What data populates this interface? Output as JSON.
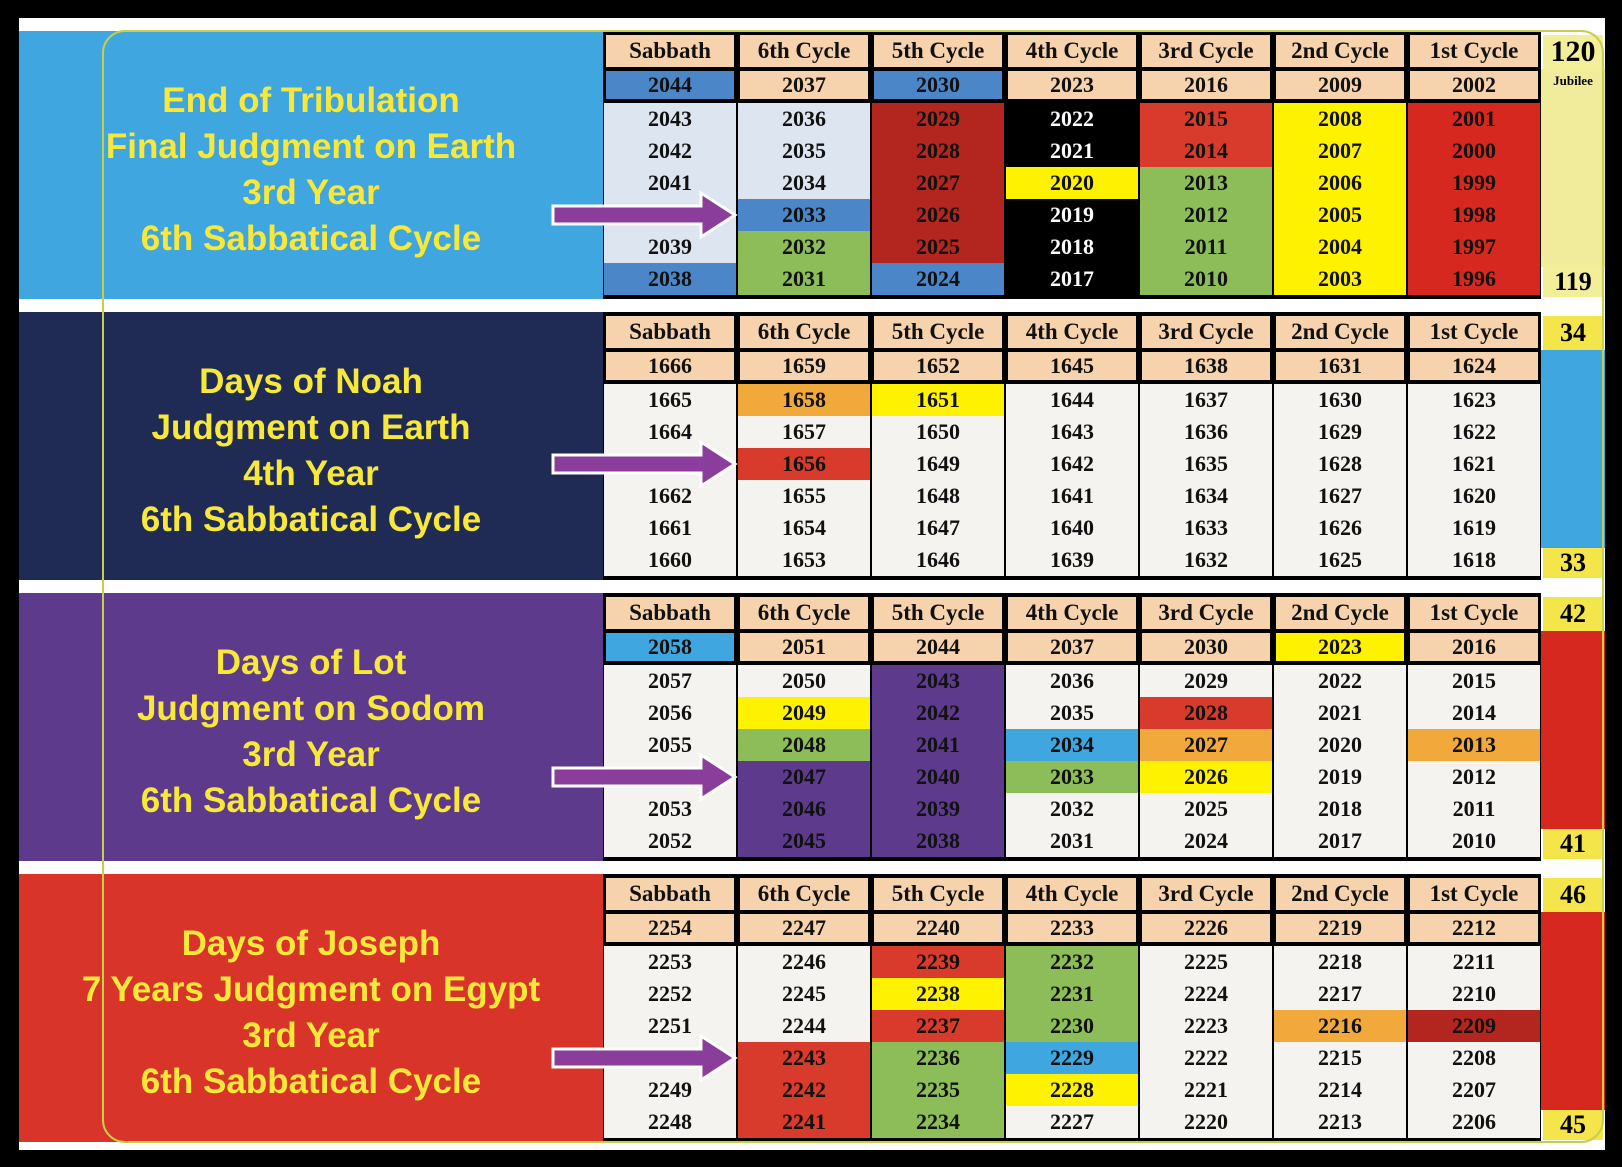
{
  "header_color": "#f7d3ad",
  "year_row_color": "#f7d3ad",
  "cell_color": "#f5f3ef",
  "arrow_color": "#8a3d9a",
  "panels": [
    {
      "background": "#3fa6e0",
      "title_lines": [
        "End of Tribulation",
        "Final Judgment on Earth",
        "3rd Year",
        "6th Sabbatical Cycle"
      ],
      "headers": [
        "Sabbath",
        "6th Cycle",
        "5th Cycle",
        "4th Cycle",
        "3rd Cycle",
        "2nd Cycle",
        "1st Cycle"
      ],
      "rows": [
        [
          2044,
          2037,
          2030,
          2023,
          2016,
          2009,
          2002
        ],
        [
          2043,
          2036,
          2029,
          2022,
          2015,
          2008,
          2001
        ],
        [
          2042,
          2035,
          2028,
          2021,
          2014,
          2007,
          2000
        ],
        [
          2041,
          2034,
          2027,
          2020,
          2013,
          2006,
          1999
        ],
        [
          null,
          2033,
          2026,
          2019,
          2012,
          2005,
          1998
        ],
        [
          2039,
          2032,
          2025,
          2018,
          2011,
          2004,
          1997
        ],
        [
          2038,
          2031,
          2024,
          2017,
          2010,
          2003,
          1996
        ]
      ],
      "colors": [
        [
          "#4a86c8",
          null,
          "#4a86c8",
          null,
          null,
          null,
          null
        ],
        [
          "#dde5f1",
          "#dde5f1",
          "#b3261f",
          "#000000",
          "#d83a2b",
          "#fff200",
          "#d7281f"
        ],
        [
          "#dde5f1",
          "#dde5f1",
          "#b3261f",
          "#000000",
          "#d83a2b",
          "#fff200",
          "#d7281f"
        ],
        [
          "#dde5f1",
          "#dde5f1",
          "#b3261f",
          "#fff200",
          "#8cbd58",
          "#fff200",
          "#d7281f"
        ],
        [
          "#dde5f1",
          "#4a86c8",
          "#b3261f",
          "#000000",
          "#8cbd58",
          "#fff200",
          "#d7281f"
        ],
        [
          "#dde5f1",
          "#8cbd58",
          "#b3261f",
          "#000000",
          "#8cbd58",
          "#fff200",
          "#d7281f"
        ],
        [
          "#4a86c8",
          "#8cbd58",
          "#4a86c8",
          "#000000",
          "#8cbd58",
          "#fff200",
          "#d7281f"
        ]
      ],
      "jubilee": {
        "top": 120,
        "label": "Jubilee",
        "bottom": 119,
        "color": "#f1ec9c",
        "box_color": "#f3ee9a"
      }
    },
    {
      "background": "#1f2a55",
      "title_lines": [
        "Days of Noah",
        "Judgment on Earth",
        "4th Year",
        "6th Sabbatical Cycle"
      ],
      "headers": [
        "Sabbath",
        "6th Cycle",
        "5th Cycle",
        "4th Cycle",
        "3rd Cycle",
        "2nd Cycle",
        "1st Cycle"
      ],
      "rows": [
        [
          1666,
          1659,
          1652,
          1645,
          1638,
          1631,
          1624
        ],
        [
          1665,
          1658,
          1651,
          1644,
          1637,
          1630,
          1623
        ],
        [
          1664,
          1657,
          1650,
          1643,
          1636,
          1629,
          1622
        ],
        [
          null,
          1656,
          1649,
          1642,
          1635,
          1628,
          1621
        ],
        [
          1662,
          1655,
          1648,
          1641,
          1634,
          1627,
          1620
        ],
        [
          1661,
          1654,
          1647,
          1640,
          1633,
          1626,
          1619
        ],
        [
          1660,
          1653,
          1646,
          1639,
          1632,
          1625,
          1618
        ]
      ],
      "colors": [
        [
          null,
          null,
          null,
          null,
          null,
          null,
          null
        ],
        [
          null,
          "#f2a93b",
          "#fff200",
          null,
          null,
          null,
          null
        ],
        [
          null,
          null,
          null,
          null,
          null,
          null,
          null
        ],
        [
          null,
          "#d83a2b",
          null,
          null,
          null,
          null,
          null
        ],
        [
          null,
          null,
          null,
          null,
          null,
          null,
          null
        ],
        [
          null,
          null,
          null,
          null,
          null,
          null,
          null
        ],
        [
          null,
          null,
          null,
          null,
          null,
          null,
          null
        ]
      ],
      "jubilee": {
        "top": 34,
        "bottom": 33,
        "color": "#3fa6e0",
        "box_color": "#f4e64a"
      }
    },
    {
      "background": "#5e3a8c",
      "title_lines": [
        "Days of Lot",
        "Judgment on Sodom",
        "3rd Year",
        "6th Sabbatical Cycle"
      ],
      "headers": [
        "Sabbath",
        "6th Cycle",
        "5th Cycle",
        "4th Cycle",
        "3rd Cycle",
        "2nd Cycle",
        "1st Cycle"
      ],
      "rows": [
        [
          2058,
          2051,
          2044,
          2037,
          2030,
          2023,
          2016
        ],
        [
          2057,
          2050,
          2043,
          2036,
          2029,
          2022,
          2015
        ],
        [
          2056,
          2049,
          2042,
          2035,
          2028,
          2021,
          2014
        ],
        [
          2055,
          2048,
          2041,
          2034,
          2027,
          2020,
          2013
        ],
        [
          null,
          2047,
          2040,
          2033,
          2026,
          2019,
          2012
        ],
        [
          2053,
          2046,
          2039,
          2032,
          2025,
          2018,
          2011
        ],
        [
          2052,
          2045,
          2038,
          2031,
          2024,
          2017,
          2010
        ]
      ],
      "colors": [
        [
          "#3fa6e0",
          null,
          null,
          null,
          null,
          "#fff200",
          null
        ],
        [
          null,
          null,
          "#5e3a8c",
          null,
          null,
          null,
          null
        ],
        [
          null,
          "#fff200",
          "#5e3a8c",
          null,
          "#d83a2b",
          null,
          null
        ],
        [
          null,
          "#8cbd58",
          "#5e3a8c",
          "#3fa6e0",
          "#f2a93b",
          null,
          "#f2a93b"
        ],
        [
          null,
          "#5e3a8c",
          "#5e3a8c",
          "#8cbd58",
          "#fff200",
          null,
          null
        ],
        [
          null,
          "#5e3a8c",
          "#5e3a8c",
          null,
          null,
          null,
          null
        ],
        [
          null,
          "#5e3a8c",
          "#5e3a8c",
          null,
          null,
          null,
          null
        ]
      ],
      "jubilee": {
        "top": 42,
        "bottom": 41,
        "color": "#d7281f",
        "box_color": "#f4e64a"
      }
    },
    {
      "background": "#d9342a",
      "title_lines": [
        "Days of Joseph",
        "7 Years Judgment on Egypt",
        "3rd Year",
        "6th Sabbatical Cycle"
      ],
      "headers": [
        "Sabbath",
        "6th Cycle",
        "5th Cycle",
        "4th Cycle",
        "3rd Cycle",
        "2nd Cycle",
        "1st Cycle"
      ],
      "rows": [
        [
          2254,
          2247,
          2240,
          2233,
          2226,
          2219,
          2212
        ],
        [
          2253,
          2246,
          2239,
          2232,
          2225,
          2218,
          2211
        ],
        [
          2252,
          2245,
          2238,
          2231,
          2224,
          2217,
          2210
        ],
        [
          2251,
          2244,
          2237,
          2230,
          2223,
          2216,
          2209
        ],
        [
          null,
          2243,
          2236,
          2229,
          2222,
          2215,
          2208
        ],
        [
          2249,
          2242,
          2235,
          2228,
          2221,
          2214,
          2207
        ],
        [
          2248,
          2241,
          2234,
          2227,
          2220,
          2213,
          2206
        ]
      ],
      "colors": [
        [
          null,
          null,
          null,
          null,
          null,
          null,
          null
        ],
        [
          null,
          null,
          "#d83a2b",
          "#8cbd58",
          null,
          null,
          null
        ],
        [
          null,
          null,
          "#fff200",
          "#8cbd58",
          null,
          null,
          null
        ],
        [
          null,
          null,
          "#d83a2b",
          "#8cbd58",
          null,
          "#f2a93b",
          "#b3261f"
        ],
        [
          null,
          "#d83a2b",
          "#8cbd58",
          "#3fa6e0",
          null,
          null,
          null
        ],
        [
          null,
          "#d83a2b",
          "#8cbd58",
          "#fff200",
          null,
          null,
          null
        ],
        [
          null,
          "#d83a2b",
          "#8cbd58",
          null,
          null,
          null,
          null
        ]
      ],
      "jubilee": {
        "top": 46,
        "bottom": 45,
        "color": "#d7281f",
        "box_color": "#f4e64a"
      }
    }
  ]
}
